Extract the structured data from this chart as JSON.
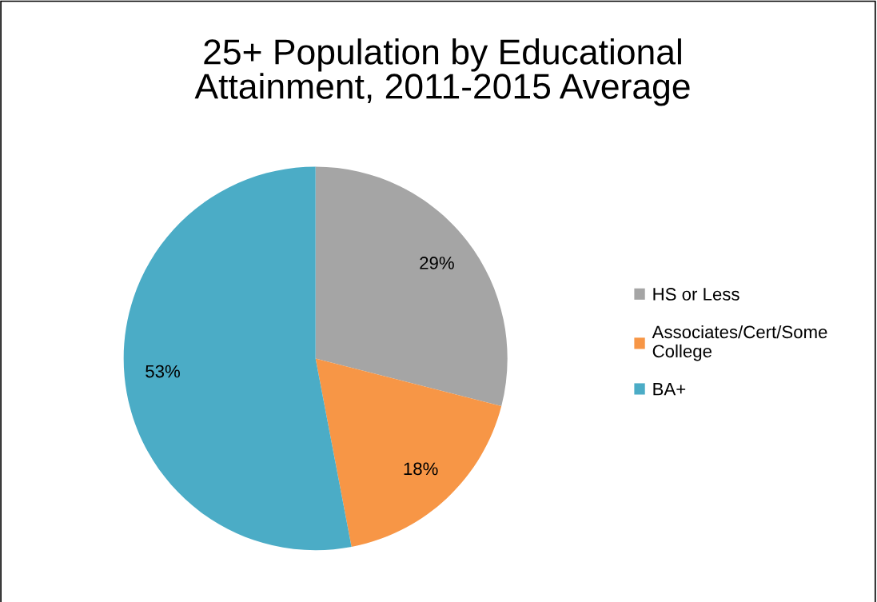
{
  "chart_data": {
    "type": "pie",
    "title": "25+ Population by Educational Attainment, 2011-2015 Average",
    "categories": [
      "HS or Less",
      "Associates/Cert/Some College",
      "BA+"
    ],
    "values": [
      29,
      18,
      53
    ],
    "colors": [
      "#a5a5a5",
      "#f79646",
      "#4bacc6"
    ],
    "value_labels": [
      "29%",
      "18%",
      "53%"
    ],
    "legend": "right"
  }
}
